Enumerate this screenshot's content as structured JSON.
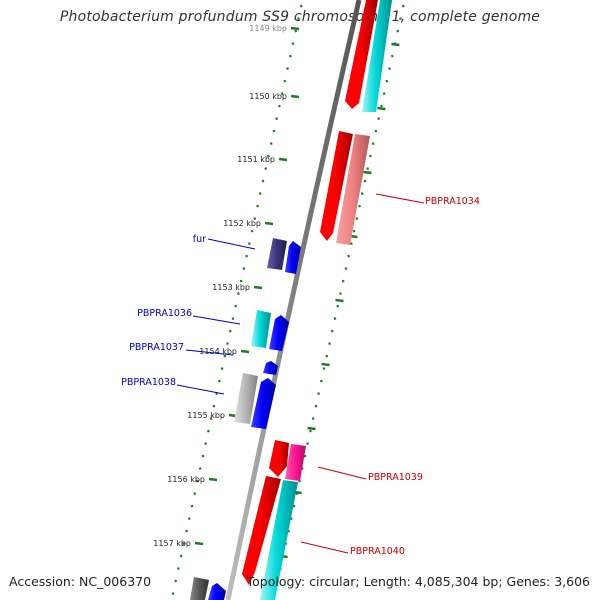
{
  "title": "Photobacterium profundum SS9 chromosome 1, complete genome",
  "footer": {
    "accession": "Accession: NC_006370",
    "summary": "Topology: circular; Length: 4,085,304 bp; Genes: 3,606"
  },
  "scale_labels": [
    "1149 kbp",
    "1150 kbp",
    "1151 kbp",
    "1152 kbp",
    "1153 kbp",
    "1154 kbp",
    "1155 kbp",
    "1156 kbp",
    "1157 kbp"
  ],
  "gene_labels": [
    {
      "text": "fur",
      "strand": "minus"
    },
    {
      "text": "PBPRA1036",
      "strand": "minus"
    },
    {
      "text": "PBPRA1037",
      "strand": "minus"
    },
    {
      "text": "PBPRA1038",
      "strand": "minus"
    },
    {
      "text": "PBPRA1034",
      "strand": "plus"
    },
    {
      "text": "PBPRA1039",
      "strand": "plus"
    },
    {
      "text": "PBPRA1040",
      "strand": "plus"
    }
  ],
  "colors": {
    "backbone": "#808080",
    "ticks": "#1e7d1e",
    "label_minus": "#0000cc",
    "label_plus": "#cc0000",
    "cds_red": "#ff0000",
    "cds_light_red": "#f08080",
    "cds_magenta": "#ff1493",
    "cds_cyan": "#00d8d8",
    "cds_blue": "#0000ff",
    "cds_navy": "#3b347a",
    "cds_gray": "#a9a9a9",
    "cds_dark_gray": "#555555"
  }
}
